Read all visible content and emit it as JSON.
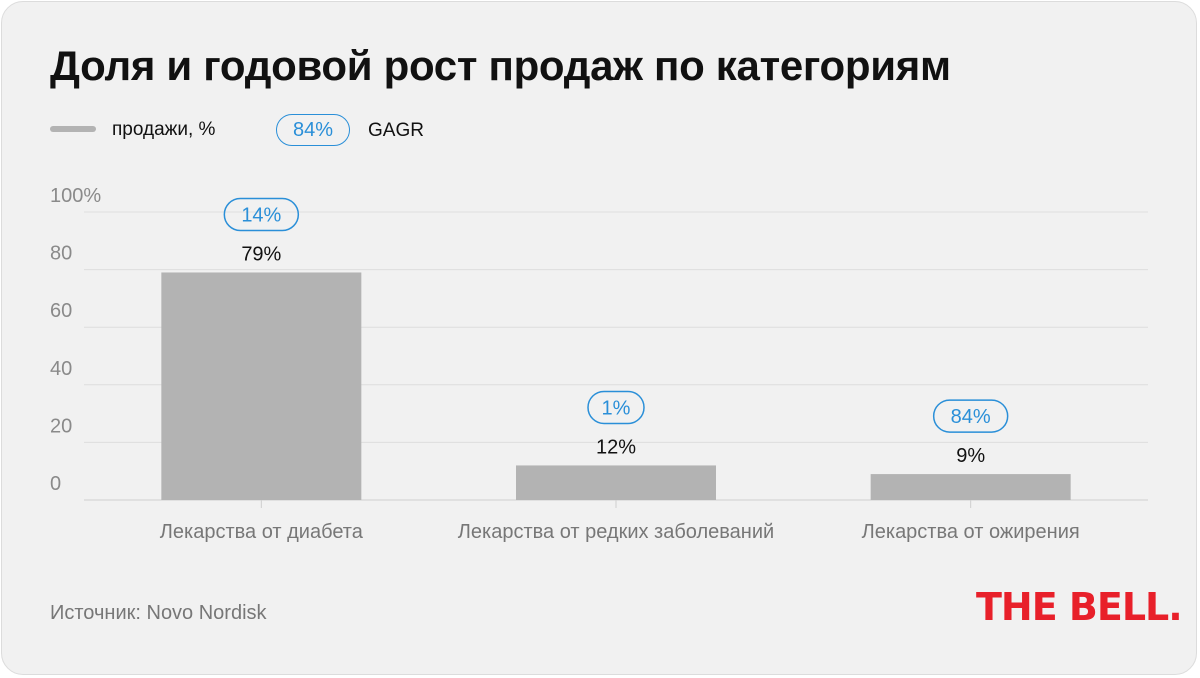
{
  "chart_data": {
    "type": "bar",
    "title": "Доля и годовой рост продаж по категориям",
    "legend": {
      "placement": "top-left",
      "sales_label": "продажи, %",
      "cagr_sample": "84%",
      "cagr_label": "GAGR"
    },
    "categories": [
      "Лекарства от диабета",
      "Лекарства от редких заболеваний",
      "Лекарства от ожирения"
    ],
    "series": [
      {
        "name": "продажи, %",
        "values": [
          79,
          12,
          9
        ],
        "labels": [
          "79%",
          "12%",
          "9%"
        ],
        "color": "#b3b3b3"
      }
    ],
    "cagr_labels": [
      "14%",
      "1%",
      "84%"
    ],
    "ylim": [
      0,
      100
    ],
    "yticks": [
      0,
      20,
      40,
      60,
      80,
      100
    ],
    "ytick_labels": [
      "0",
      "20",
      "40",
      "60",
      "80",
      "100%"
    ],
    "grid": true,
    "xlabel": "",
    "ylabel": ""
  },
  "colors": {
    "bar": "#b3b3b3",
    "accent": "#2a8fd8",
    "grid": "#dedede",
    "logo": "#e8202a",
    "background": "#f1f1f1"
  },
  "source": "Источник: Novo Nordisk",
  "logo_text": "THE BELL."
}
